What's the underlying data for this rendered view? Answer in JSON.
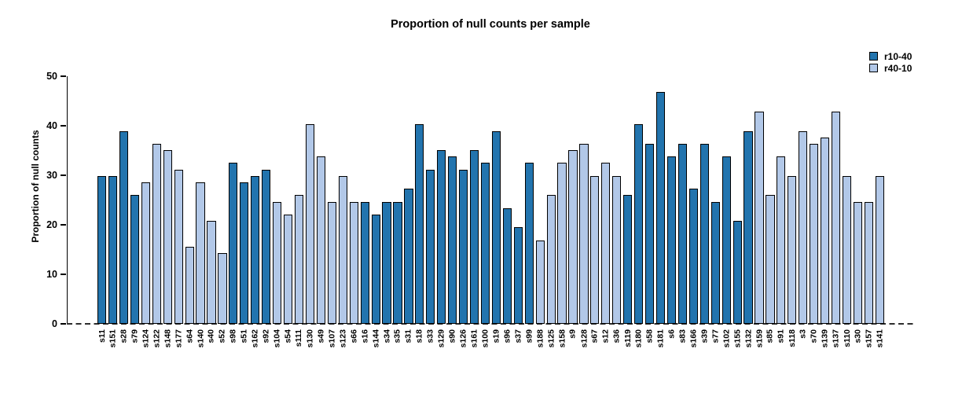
{
  "chart_data": {
    "type": "bar",
    "title": "Proportion of null counts per sample",
    "xlabel": "",
    "ylabel": "Proportion of null counts",
    "ylim": [
      0,
      50
    ],
    "yticks": [
      0,
      10,
      20,
      30,
      40,
      50
    ],
    "grid": false,
    "legend_position": "top-right",
    "zero_line": "dashed",
    "legend": [
      {
        "name": "r10-40",
        "color": "#2274AE"
      },
      {
        "name": "r40-10",
        "color": "#B2C8E8"
      }
    ],
    "bars": [
      {
        "label": "s11",
        "value": 29.87,
        "group": "r10-40"
      },
      {
        "label": "s151",
        "value": 29.87,
        "group": "r10-40"
      },
      {
        "label": "s28",
        "value": 38.96,
        "group": "r10-40"
      },
      {
        "label": "s79",
        "value": 25.97,
        "group": "r10-40"
      },
      {
        "label": "s124",
        "value": 28.57,
        "group": "r40-10"
      },
      {
        "label": "s122",
        "value": 36.36,
        "group": "r40-10"
      },
      {
        "label": "s148",
        "value": 35.06,
        "group": "r40-10"
      },
      {
        "label": "s177",
        "value": 31.17,
        "group": "r40-10"
      },
      {
        "label": "s64",
        "value": 15.58,
        "group": "r40-10"
      },
      {
        "label": "s140",
        "value": 28.57,
        "group": "r40-10"
      },
      {
        "label": "s40",
        "value": 20.78,
        "group": "r40-10"
      },
      {
        "label": "s52",
        "value": 14.29,
        "group": "r40-10"
      },
      {
        "label": "s98",
        "value": 32.47,
        "group": "r10-40"
      },
      {
        "label": "s51",
        "value": 28.57,
        "group": "r10-40"
      },
      {
        "label": "s162",
        "value": 29.87,
        "group": "r10-40"
      },
      {
        "label": "s92",
        "value": 31.17,
        "group": "r10-40"
      },
      {
        "label": "s104",
        "value": 24.68,
        "group": "r40-10"
      },
      {
        "label": "s54",
        "value": 22.08,
        "group": "r40-10"
      },
      {
        "label": "s111",
        "value": 25.97,
        "group": "r40-10"
      },
      {
        "label": "s130",
        "value": 40.26,
        "group": "r40-10"
      },
      {
        "label": "s49",
        "value": 33.77,
        "group": "r40-10"
      },
      {
        "label": "s107",
        "value": 24.68,
        "group": "r40-10"
      },
      {
        "label": "s123",
        "value": 29.87,
        "group": "r40-10"
      },
      {
        "label": "s66",
        "value": 24.68,
        "group": "r40-10"
      },
      {
        "label": "s16",
        "value": 24.68,
        "group": "r10-40"
      },
      {
        "label": "s144",
        "value": 22.08,
        "group": "r10-40"
      },
      {
        "label": "s34",
        "value": 24.68,
        "group": "r10-40"
      },
      {
        "label": "s35",
        "value": 24.68,
        "group": "r10-40"
      },
      {
        "label": "s31",
        "value": 27.27,
        "group": "r10-40"
      },
      {
        "label": "s18",
        "value": 40.26,
        "group": "r10-40"
      },
      {
        "label": "s33",
        "value": 31.17,
        "group": "r10-40"
      },
      {
        "label": "s129",
        "value": 35.06,
        "group": "r10-40"
      },
      {
        "label": "s90",
        "value": 33.77,
        "group": "r10-40"
      },
      {
        "label": "s126",
        "value": 31.17,
        "group": "r10-40"
      },
      {
        "label": "s161",
        "value": 35.06,
        "group": "r10-40"
      },
      {
        "label": "s100",
        "value": 32.47,
        "group": "r10-40"
      },
      {
        "label": "s19",
        "value": 38.96,
        "group": "r10-40"
      },
      {
        "label": "s96",
        "value": 23.38,
        "group": "r10-40"
      },
      {
        "label": "s37",
        "value": 19.48,
        "group": "r10-40"
      },
      {
        "label": "s99",
        "value": 32.47,
        "group": "r10-40"
      },
      {
        "label": "s188",
        "value": 16.88,
        "group": "r40-10"
      },
      {
        "label": "s125",
        "value": 25.97,
        "group": "r40-10"
      },
      {
        "label": "s158",
        "value": 32.47,
        "group": "r40-10"
      },
      {
        "label": "s9",
        "value": 35.06,
        "group": "r40-10"
      },
      {
        "label": "s128",
        "value": 36.36,
        "group": "r40-10"
      },
      {
        "label": "s67",
        "value": 29.87,
        "group": "r40-10"
      },
      {
        "label": "s12",
        "value": 32.47,
        "group": "r40-10"
      },
      {
        "label": "s36",
        "value": 29.87,
        "group": "r40-10"
      },
      {
        "label": "s119",
        "value": 25.97,
        "group": "r10-40"
      },
      {
        "label": "s180",
        "value": 40.26,
        "group": "r10-40"
      },
      {
        "label": "s58",
        "value": 36.36,
        "group": "r10-40"
      },
      {
        "label": "s181",
        "value": 46.75,
        "group": "r10-40"
      },
      {
        "label": "s6",
        "value": 33.77,
        "group": "r10-40"
      },
      {
        "label": "s83",
        "value": 36.36,
        "group": "r10-40"
      },
      {
        "label": "s166",
        "value": 27.27,
        "group": "r10-40"
      },
      {
        "label": "s39",
        "value": 36.36,
        "group": "r10-40"
      },
      {
        "label": "s77",
        "value": 24.68,
        "group": "r10-40"
      },
      {
        "label": "s102",
        "value": 33.77,
        "group": "r10-40"
      },
      {
        "label": "s155",
        "value": 20.78,
        "group": "r10-40"
      },
      {
        "label": "s132",
        "value": 38.96,
        "group": "r10-40"
      },
      {
        "label": "s159",
        "value": 42.86,
        "group": "r40-10"
      },
      {
        "label": "s85",
        "value": 25.97,
        "group": "r40-10"
      },
      {
        "label": "s91",
        "value": 33.77,
        "group": "r40-10"
      },
      {
        "label": "s118",
        "value": 29.87,
        "group": "r40-10"
      },
      {
        "label": "s3",
        "value": 38.96,
        "group": "r40-10"
      },
      {
        "label": "s70",
        "value": 36.36,
        "group": "r40-10"
      },
      {
        "label": "s139",
        "value": 37.66,
        "group": "r40-10"
      },
      {
        "label": "s137",
        "value": 42.86,
        "group": "r40-10"
      },
      {
        "label": "s110",
        "value": 29.87,
        "group": "r40-10"
      },
      {
        "label": "s30",
        "value": 24.68,
        "group": "r40-10"
      },
      {
        "label": "s157",
        "value": 24.68,
        "group": "r40-10"
      },
      {
        "label": "s141",
        "value": 29.87,
        "group": "r40-10"
      }
    ]
  }
}
